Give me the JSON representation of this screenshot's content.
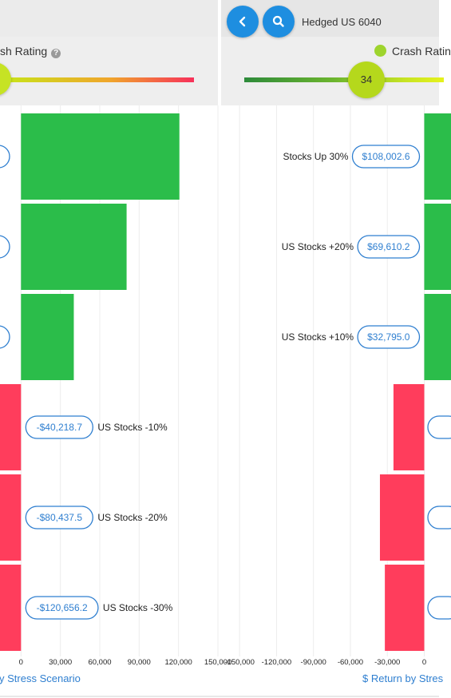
{
  "left_panel": {
    "crash_rating_label": "sh Rating",
    "help_icon": "question-circle-icon"
  },
  "right_panel": {
    "portfolio_name": "Hedged US 6040",
    "crash_rating_label": "Crash Ratin",
    "crash_rating_value": "34",
    "crash_rating_fraction": 0.45,
    "back_icon": "chevron-left-icon",
    "search_icon": "search-icon"
  },
  "colors": {
    "positive": "#2bbd4a",
    "negative": "#ff3d5c",
    "accent": "#1e8ee0",
    "link": "#2f7fd0",
    "rating_dot": "#9ed42d"
  },
  "chart_data": [
    {
      "type": "bar",
      "orientation": "horizontal",
      "axis_title": "y Stress Scenario",
      "xlim": [
        -16000,
        150000
      ],
      "tick_labels": [
        "0",
        "30,000",
        "60,000",
        "90,000",
        "120,000",
        "150,000"
      ],
      "ticks": [
        0,
        30000,
        60000,
        90000,
        120000,
        150000
      ],
      "rows": [
        {
          "scenario": "",
          "value": 120656.2,
          "label": ""
        },
        {
          "scenario": "",
          "value": 80437.5,
          "label": ""
        },
        {
          "scenario": "",
          "value": 40218.7,
          "label": ""
        },
        {
          "scenario": "US Stocks -10%",
          "value": -40218.7,
          "label": "-$40,218.7"
        },
        {
          "scenario": "US Stocks -20%",
          "value": -80437.5,
          "label": "-$80,437.5"
        },
        {
          "scenario": "US Stocks -30%",
          "value": -120656.2,
          "label": "-$120,656.2"
        }
      ]
    },
    {
      "type": "bar",
      "orientation": "horizontal",
      "axis_title": "$ Return by Stres",
      "xlim": [
        -165000,
        12000
      ],
      "tick_labels": [
        "-150,000",
        "-120,000",
        "-90,000",
        "-60,000",
        "-30,000",
        "0"
      ],
      "ticks": [
        -150000,
        -120000,
        -90000,
        -60000,
        -30000,
        0
      ],
      "rows": [
        {
          "scenario": "Stocks Up 30%",
          "value": 108002.6,
          "label": "$108,002.6"
        },
        {
          "scenario": "US Stocks +20%",
          "value": 69610.2,
          "label": "$69,610.2"
        },
        {
          "scenario": "US Stocks +10%",
          "value": 32795.0,
          "label": "$32,795.0"
        },
        {
          "scenario": "",
          "value": -25000,
          "label": ""
        },
        {
          "scenario": "",
          "value": -36000,
          "label": ""
        },
        {
          "scenario": "",
          "value": -32000,
          "label": ""
        }
      ]
    }
  ]
}
